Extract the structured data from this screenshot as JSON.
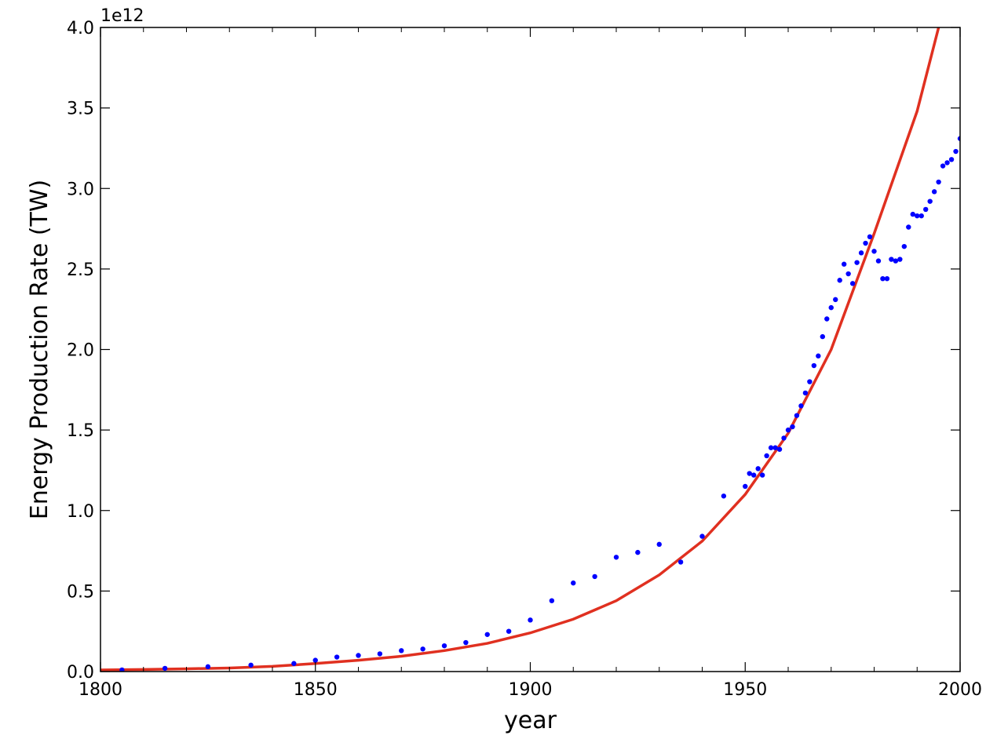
{
  "chart_data": {
    "type": "scatter",
    "xlabel": "year",
    "ylabel": "Energy Production Rate (TW)",
    "y_offset_label": "1e12",
    "xlim": [
      1800,
      2000
    ],
    "ylim": [
      0.0,
      4.0
    ],
    "x_ticks": [
      1800,
      1850,
      1900,
      1950,
      2000
    ],
    "x_tick_labels": [
      "1800",
      "1850",
      "1900",
      "1950",
      "2000"
    ],
    "y_ticks": [
      0.0,
      0.5,
      1.0,
      1.5,
      2.0,
      2.5,
      3.0,
      3.5,
      4.0
    ],
    "y_tick_labels": [
      "0.0",
      "0.5",
      "1.0",
      "1.5",
      "2.0",
      "2.5",
      "3.0",
      "3.5",
      "4.0"
    ],
    "grid": false,
    "colors": {
      "points": "#0000ff",
      "fit_line": "#e03020",
      "axes": "#000000"
    },
    "series": [
      {
        "kind": "scatter",
        "x": [
          1805,
          1815,
          1825,
          1835,
          1845,
          1850,
          1855,
          1860,
          1865,
          1870,
          1875,
          1880,
          1885,
          1890,
          1895,
          1900,
          1905,
          1910,
          1915,
          1920,
          1925,
          1930,
          1935,
          1940,
          1945,
          1950,
          1951,
          1952,
          1953,
          1954,
          1955,
          1956,
          1957,
          1958,
          1959,
          1960,
          1961,
          1962,
          1963,
          1964,
          1965,
          1966,
          1967,
          1968,
          1969,
          1970,
          1971,
          1972,
          1973,
          1974,
          1975,
          1976,
          1977,
          1978,
          1979,
          1980,
          1981,
          1982,
          1983,
          1984,
          1985,
          1986,
          1987,
          1988,
          1989,
          1990,
          1991,
          1992,
          1993,
          1994,
          1995,
          1996,
          1997,
          1998,
          1999,
          2000
        ],
        "y": [
          0.01,
          0.02,
          0.03,
          0.04,
          0.05,
          0.07,
          0.09,
          0.1,
          0.11,
          0.13,
          0.14,
          0.16,
          0.18,
          0.23,
          0.25,
          0.32,
          0.44,
          0.55,
          0.59,
          0.71,
          0.74,
          0.79,
          0.68,
          0.84,
          1.09,
          1.15,
          1.23,
          1.22,
          1.26,
          1.22,
          1.34,
          1.39,
          1.39,
          1.38,
          1.45,
          1.5,
          1.52,
          1.59,
          1.65,
          1.73,
          1.8,
          1.9,
          1.96,
          2.08,
          2.19,
          2.26,
          2.31,
          2.43,
          2.53,
          2.47,
          2.41,
          2.54,
          2.6,
          2.66,
          2.7,
          2.61,
          2.55,
          2.44,
          2.44,
          2.56,
          2.55,
          2.56,
          2.64,
          2.76,
          2.84,
          2.83,
          2.83,
          2.87,
          2.92,
          2.98,
          3.04,
          3.14,
          3.16,
          3.18,
          3.23,
          3.31
        ]
      },
      {
        "kind": "line",
        "x": [
          1800,
          1810,
          1820,
          1830,
          1840,
          1850,
          1860,
          1870,
          1880,
          1890,
          1900,
          1910,
          1920,
          1930,
          1940,
          1950,
          1960,
          1970,
          1980,
          1990,
          1995
        ],
        "y": [
          0.01,
          0.013,
          0.017,
          0.022,
          0.032,
          0.05,
          0.07,
          0.095,
          0.13,
          0.175,
          0.24,
          0.325,
          0.44,
          0.6,
          0.81,
          1.1,
          1.48,
          2.0,
          2.72,
          3.48,
          4.0
        ]
      }
    ]
  }
}
